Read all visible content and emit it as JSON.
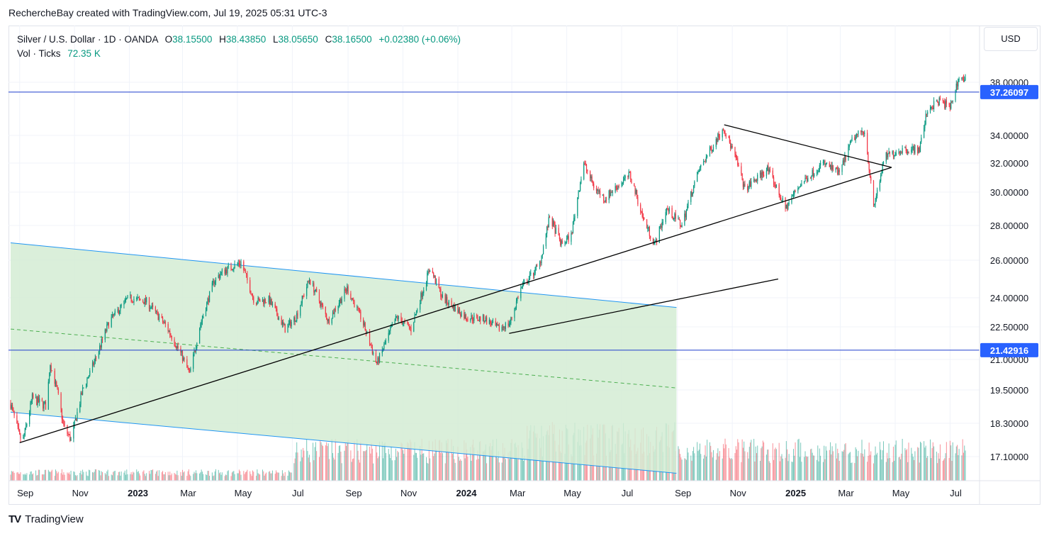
{
  "header": {
    "attribution": "RechercheBay created with TradingView.com, Jul 19, 2025 05:31 UTC-3"
  },
  "legend": {
    "title": "Silver / U.S. Dollar · 1D · OANDA",
    "o_label": "O",
    "o_value": "38.15500",
    "h_label": "H",
    "h_value": "38.43850",
    "l_label": "L",
    "l_value": "38.05650",
    "c_label": "C",
    "c_value": "38.16500",
    "change": "+0.02380 (+0.06%)",
    "vol_label": "Vol · Ticks",
    "vol_value": "72.35 K"
  },
  "currency_button": "USD",
  "footer": {
    "logo_text": "TradingView",
    "logo_glyph": "TV"
  },
  "colors": {
    "up": "#089981",
    "down": "#f23645",
    "channel_fill": "#d4ecd4",
    "channel_line": "#2196f3",
    "hline": "#1e3dcc",
    "label_bg": "#2962ff"
  },
  "chart_data": {
    "type": "candlestick",
    "symbol": "XAGUSD",
    "timeframe": "1D",
    "scale": "log",
    "y_ticks": [
      "38.00000",
      "34.00000",
      "32.00000",
      "30.00000",
      "28.00000",
      "26.00000",
      "24.00000",
      "22.50000",
      "21.00000",
      "19.50000",
      "18.30000",
      "17.10000"
    ],
    "x_ticks": [
      {
        "label": "Sep",
        "date": "2022-09-01",
        "bold": false
      },
      {
        "label": "Nov",
        "date": "2022-11-01",
        "bold": false
      },
      {
        "label": "2023",
        "date": "2023-01-01",
        "bold": true
      },
      {
        "label": "Mar",
        "date": "2023-03-01",
        "bold": false
      },
      {
        "label": "May",
        "date": "2023-05-01",
        "bold": false
      },
      {
        "label": "Jul",
        "date": "2023-07-01",
        "bold": false
      },
      {
        "label": "Sep",
        "date": "2023-09-01",
        "bold": false
      },
      {
        "label": "Nov",
        "date": "2023-11-01",
        "bold": false
      },
      {
        "label": "2024",
        "date": "2024-01-01",
        "bold": true
      },
      {
        "label": "Mar",
        "date": "2024-03-01",
        "bold": false
      },
      {
        "label": "May",
        "date": "2024-05-01",
        "bold": false
      },
      {
        "label": "Jul",
        "date": "2024-07-01",
        "bold": false
      },
      {
        "label": "Sep",
        "date": "2024-09-01",
        "bold": false
      },
      {
        "label": "Nov",
        "date": "2024-11-01",
        "bold": false
      },
      {
        "label": "2025",
        "date": "2025-01-01",
        "bold": true
      },
      {
        "label": "Mar",
        "date": "2025-03-01",
        "bold": false
      },
      {
        "label": "May",
        "date": "2025-05-01",
        "bold": false
      },
      {
        "label": "Jul",
        "date": "2025-07-01",
        "bold": false
      }
    ],
    "horizontal_lines": [
      {
        "price": 37.26097,
        "label": "37.26097"
      },
      {
        "price": 21.42916,
        "label": "21.42916"
      }
    ],
    "close_path": [
      [
        "2022-08-22",
        19.0
      ],
      [
        "2022-09-01",
        17.8
      ],
      [
        "2022-09-05",
        17.7
      ],
      [
        "2022-09-15",
        19.2
      ],
      [
        "2022-10-01",
        18.9
      ],
      [
        "2022-10-05",
        20.8
      ],
      [
        "2022-10-20",
        18.2
      ],
      [
        "2022-10-28",
        17.7
      ],
      [
        "2022-11-10",
        19.5
      ],
      [
        "2022-11-25",
        21.1
      ],
      [
        "2022-12-10",
        22.8
      ],
      [
        "2022-12-31",
        24.0
      ],
      [
        "2023-01-20",
        23.8
      ],
      [
        "2023-02-10",
        22.6
      ],
      [
        "2023-02-28",
        21.2
      ],
      [
        "2023-03-09",
        20.3
      ],
      [
        "2023-03-20",
        22.5
      ],
      [
        "2023-04-05",
        24.9
      ],
      [
        "2023-04-15",
        25.4
      ],
      [
        "2023-05-05",
        25.9
      ],
      [
        "2023-05-20",
        23.8
      ],
      [
        "2023-06-05",
        23.9
      ],
      [
        "2023-06-23",
        22.4
      ],
      [
        "2023-07-05",
        23.0
      ],
      [
        "2023-07-20",
        25.0
      ],
      [
        "2023-08-10",
        22.8
      ],
      [
        "2023-08-31",
        24.5
      ],
      [
        "2023-09-15",
        23.0
      ],
      [
        "2023-10-03",
        20.8
      ],
      [
        "2023-10-25",
        23.0
      ],
      [
        "2023-11-10",
        22.4
      ],
      [
        "2023-12-01",
        25.6
      ],
      [
        "2023-12-15",
        24.0
      ],
      [
        "2024-01-10",
        23.0
      ],
      [
        "2024-01-31",
        22.9
      ],
      [
        "2024-02-15",
        22.4
      ],
      [
        "2024-02-28",
        22.7
      ],
      [
        "2024-03-10",
        24.4
      ],
      [
        "2024-04-01",
        25.8
      ],
      [
        "2024-04-12",
        28.5
      ],
      [
        "2024-04-25",
        26.9
      ],
      [
        "2024-05-06",
        27.4
      ],
      [
        "2024-05-20",
        32.0
      ],
      [
        "2024-05-31",
        30.4
      ],
      [
        "2024-06-12",
        29.6
      ],
      [
        "2024-07-10",
        31.2
      ],
      [
        "2024-07-25",
        28.4
      ],
      [
        "2024-08-07",
        26.9
      ],
      [
        "2024-08-20",
        29.0
      ],
      [
        "2024-09-06",
        28.0
      ],
      [
        "2024-09-25",
        31.5
      ],
      [
        "2024-10-22",
        34.6
      ],
      [
        "2024-11-05",
        32.3
      ],
      [
        "2024-11-15",
        30.2
      ],
      [
        "2024-12-10",
        31.6
      ],
      [
        "2024-12-30",
        29.0
      ],
      [
        "2025-01-15",
        30.5
      ],
      [
        "2025-02-10",
        32.0
      ],
      [
        "2025-02-28",
        31.3
      ],
      [
        "2025-03-15",
        33.8
      ],
      [
        "2025-03-28",
        34.4
      ],
      [
        "2025-04-07",
        29.0
      ],
      [
        "2025-04-20",
        32.5
      ],
      [
        "2025-05-10",
        33.0
      ],
      [
        "2025-05-28",
        33.0
      ],
      [
        "2025-06-06",
        36.0
      ],
      [
        "2025-06-20",
        36.6
      ],
      [
        "2025-07-01",
        36.1
      ],
      [
        "2025-07-11",
        38.4
      ],
      [
        "2025-07-18",
        38.165
      ]
    ],
    "volume_regimes": [
      {
        "from": "2022-08-22",
        "to": "2023-07-01",
        "level": "low"
      },
      {
        "from": "2023-07-01",
        "to": "2024-03-15",
        "level": "mid"
      },
      {
        "from": "2024-03-15",
        "to": "2024-08-31",
        "level": "high"
      },
      {
        "from": "2024-08-31",
        "to": "2025-07-18",
        "level": "mid"
      }
    ],
    "drawings": {
      "regression_channel": {
        "start": "2022-08-22",
        "end": "2024-08-31",
        "upper": [
          27.0,
          23.5
        ],
        "center": [
          22.4,
          19.6
        ],
        "lower": [
          18.7,
          16.5
        ]
      },
      "trendlines": [
        {
          "from": [
            "2022-09-01",
            17.6
          ],
          "to": [
            "2025-04-27",
            31.7
          ]
        },
        {
          "from": [
            "2024-02-27",
            22.2
          ],
          "to": [
            "2024-12-22",
            25.0
          ]
        },
        {
          "from": [
            "2024-10-23",
            34.8
          ],
          "to": [
            "2025-04-27",
            31.7
          ]
        }
      ]
    }
  }
}
